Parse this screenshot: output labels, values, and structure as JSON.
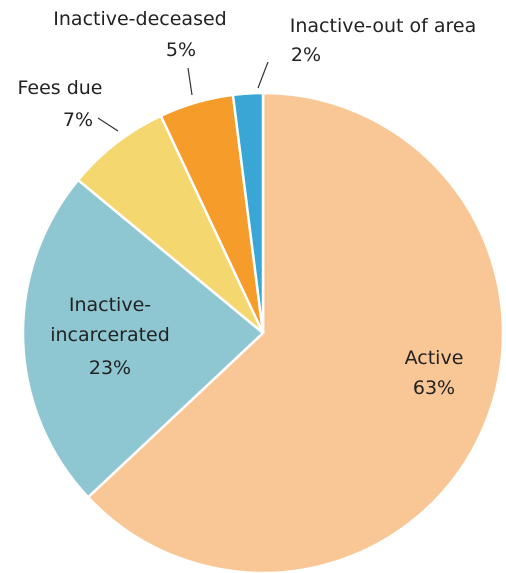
{
  "chart_data": {
    "type": "pie",
    "categories": [
      "Active",
      "Inactive-incarcerated",
      "Fees due",
      "Inactive-deceased",
      "Inactive-out of area"
    ],
    "values": [
      63,
      23,
      7,
      5,
      2
    ],
    "value_labels": [
      "63%",
      "23%",
      "7%",
      "5%",
      "2%"
    ],
    "colors": [
      "#f9c795",
      "#8ec6d1",
      "#f4d76e",
      "#f59c2a",
      "#3aa6d6"
    ]
  }
}
